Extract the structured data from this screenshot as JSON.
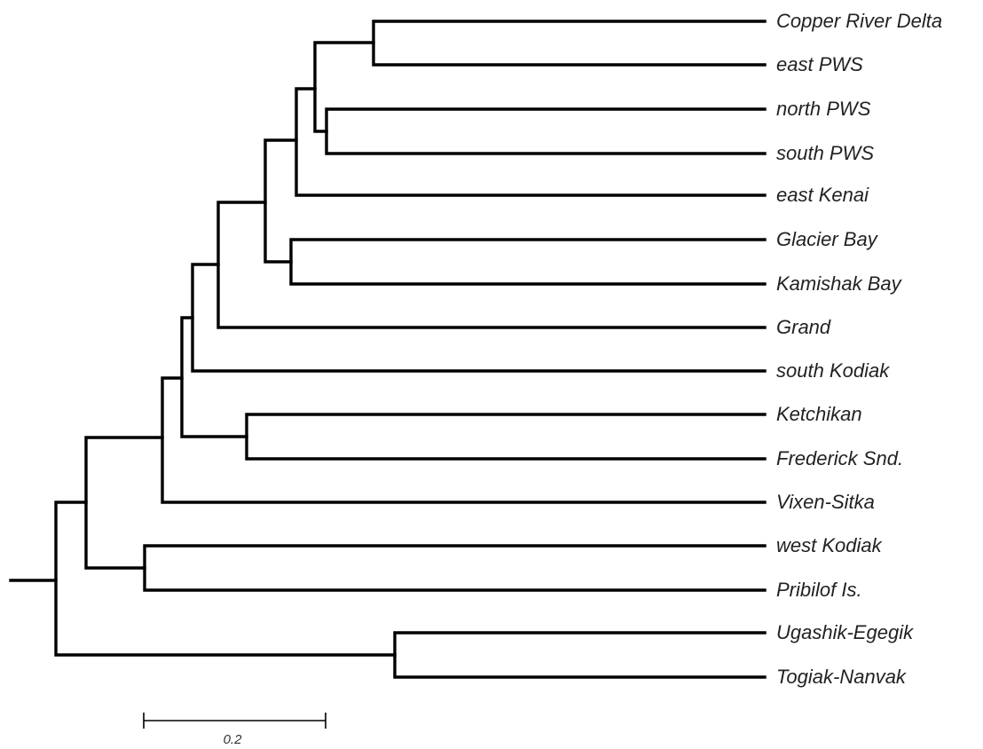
{
  "tree": {
    "leaves": [
      "Copper River Delta",
      "east PWS",
      "north PWS",
      "south PWS",
      "east Kenai",
      "Glacier Bay",
      "Kamishak Bay",
      "Grand",
      "south Kodiak",
      "Ketchikan",
      "Frederick Snd.",
      "Vixen-Sitka",
      "west Kodiak",
      "Pribilof Is.",
      "Ugashik-Egegik",
      "Togiak-Nanvak"
    ]
  },
  "scale_bar": {
    "label": "0.2",
    "length": 0.2
  }
}
